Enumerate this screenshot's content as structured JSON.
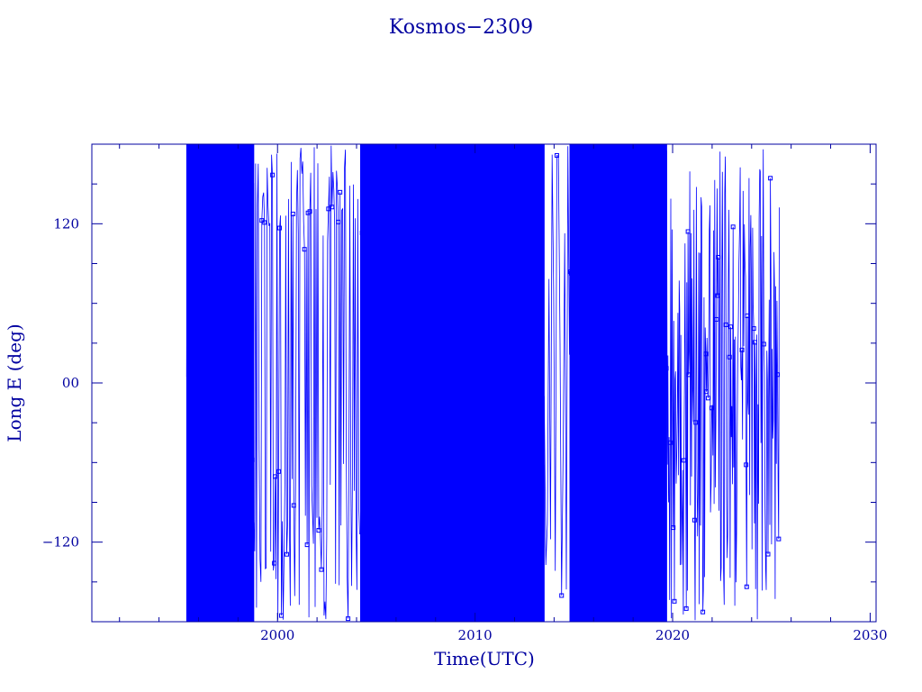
{
  "chart_data": {
    "type": "line",
    "title": "Kosmos−2309",
    "xlabel": "Time(UTC)",
    "ylabel": "Long E (deg)",
    "xlim": [
      1990.6,
      2030.3
    ],
    "ylim": [
      -180,
      180
    ],
    "x_ticks": [
      2000,
      2010,
      2020,
      2030
    ],
    "x_tick_labels": [
      "2000",
      "2010",
      "2020",
      "2030"
    ],
    "y_ticks": [
      120,
      0,
      -120
    ],
    "y_tick_labels": [
      "120",
      "00",
      "−120"
    ],
    "series": [
      {
        "style": "line-with-square-markers",
        "color": "#0000ff",
        "data_start": 1995.4,
        "data_end": 2025.4,
        "longitude_range": [
          -180,
          180
        ],
        "segments": [
          {
            "x_range": [
              1995.4,
              1998.8
            ],
            "lon_range": [
              -180,
              180
            ],
            "density": "dense"
          },
          {
            "x_range": [
              1998.8,
              2004.2
            ],
            "lon_range_upper": [
              120,
              180
            ],
            "lon_range_lower": [
              -180,
              -40
            ],
            "density": "sparse-drift-loop"
          },
          {
            "x_range": [
              2004.2,
              2013.5
            ],
            "lon_range": [
              -180,
              180
            ],
            "density": "dense"
          },
          {
            "x_range": [
              2013.5,
              2014.8
            ],
            "lon_range": [
              -180,
              180
            ],
            "density": "sparse"
          },
          {
            "x_range": [
              2014.8,
              2019.7
            ],
            "lon_range": [
              -180,
              180
            ],
            "density": "dense"
          },
          {
            "x_range": [
              2019.7,
              2025.4
            ],
            "lon_range": [
              -180,
              180
            ],
            "density": "medium"
          }
        ]
      }
    ],
    "grid": false,
    "legend": "none"
  }
}
